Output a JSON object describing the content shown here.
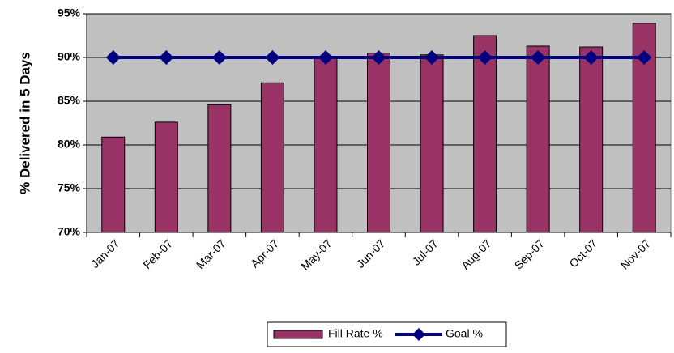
{
  "chart_data": {
    "type": "bar",
    "y_label": "% Delivered in 5 Days",
    "categories": [
      "Jan-07",
      "Feb-07",
      "Mar-07",
      "Apr-07",
      "May-07",
      "Jun-07",
      "Jul-07",
      "Aug-07",
      "Sep-07",
      "Oct-07",
      "Nov-07"
    ],
    "series": [
      {
        "name": "Fill Rate %",
        "color": "#993366",
        "type": "bar",
        "values": [
          80.9,
          82.6,
          84.6,
          87.1,
          89.9,
          90.5,
          90.3,
          92.5,
          91.3,
          91.2,
          93.9
        ]
      },
      {
        "name": "Goal %",
        "color": "#000080",
        "type": "line",
        "values": [
          90,
          90,
          90,
          90,
          90,
          90,
          90,
          90,
          90,
          90,
          90
        ]
      }
    ],
    "ylim": [
      70,
      95
    ],
    "yticks": [
      {
        "value": 70,
        "label": "70%"
      },
      {
        "value": 75,
        "label": "75%"
      },
      {
        "value": 80,
        "label": "80%"
      },
      {
        "value": 85,
        "label": "85%"
      },
      {
        "value": 90,
        "label": "90%"
      },
      {
        "value": 95,
        "label": "95%"
      }
    ],
    "grid": true,
    "plot_background": "#c0c0c0",
    "legend": "bottom"
  }
}
